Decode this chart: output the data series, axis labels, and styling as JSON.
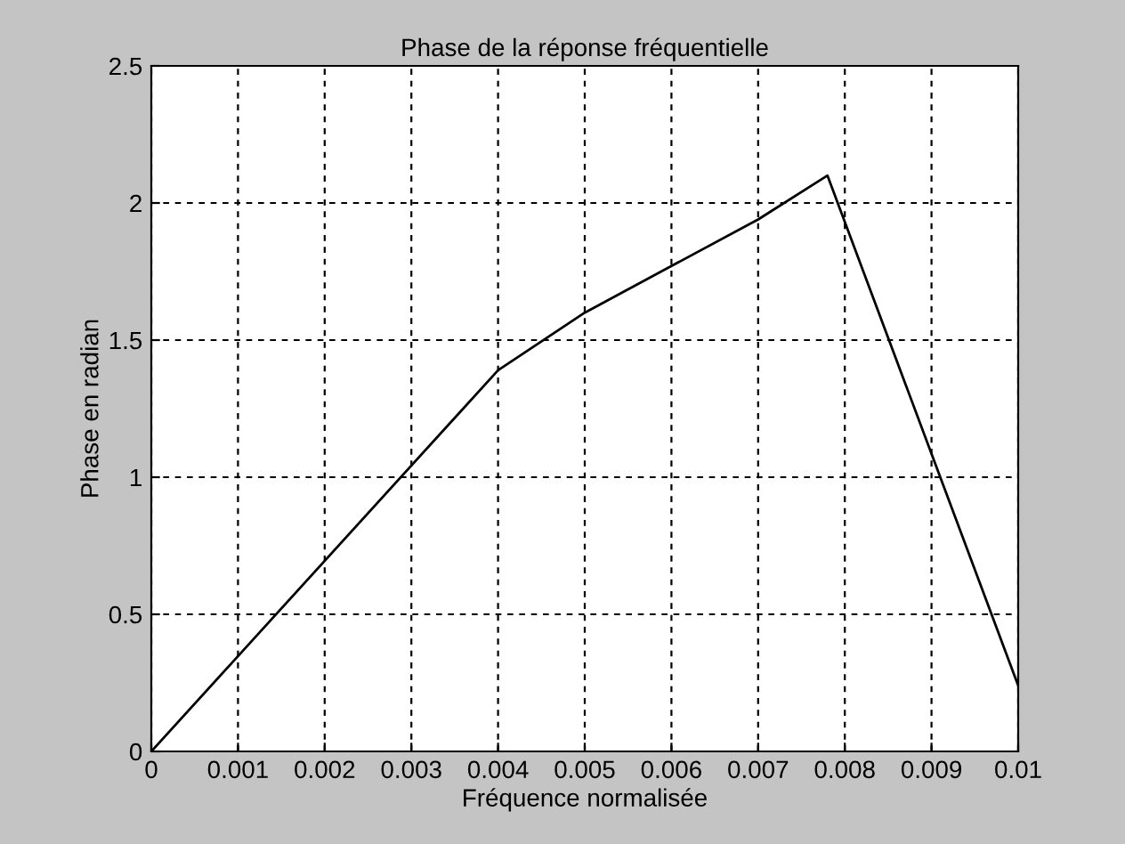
{
  "chart_data": {
    "type": "line",
    "title": "Phase de la réponse fréquentielle",
    "xlabel": "Fréquence normalisée",
    "ylabel": "Phase en radian",
    "x": [
      0,
      0.004,
      0.005,
      0.006,
      0.007,
      0.0078,
      0.01
    ],
    "series": [
      {
        "color": "#000000",
        "values": [
          0,
          1.39,
          1.6,
          1.77,
          1.94,
          2.1,
          0.24
        ]
      }
    ],
    "xlim": [
      0,
      0.01
    ],
    "xticks": [
      0,
      0.001,
      0.002,
      0.003,
      0.004,
      0.005,
      0.006,
      0.007,
      0.008,
      0.009,
      0.01
    ],
    "ylim": [
      0,
      2.5
    ],
    "yticks": [
      0,
      0.5,
      1,
      1.5,
      2,
      2.5
    ],
    "grid": true,
    "line_style": "solid",
    "marker": "none"
  }
}
